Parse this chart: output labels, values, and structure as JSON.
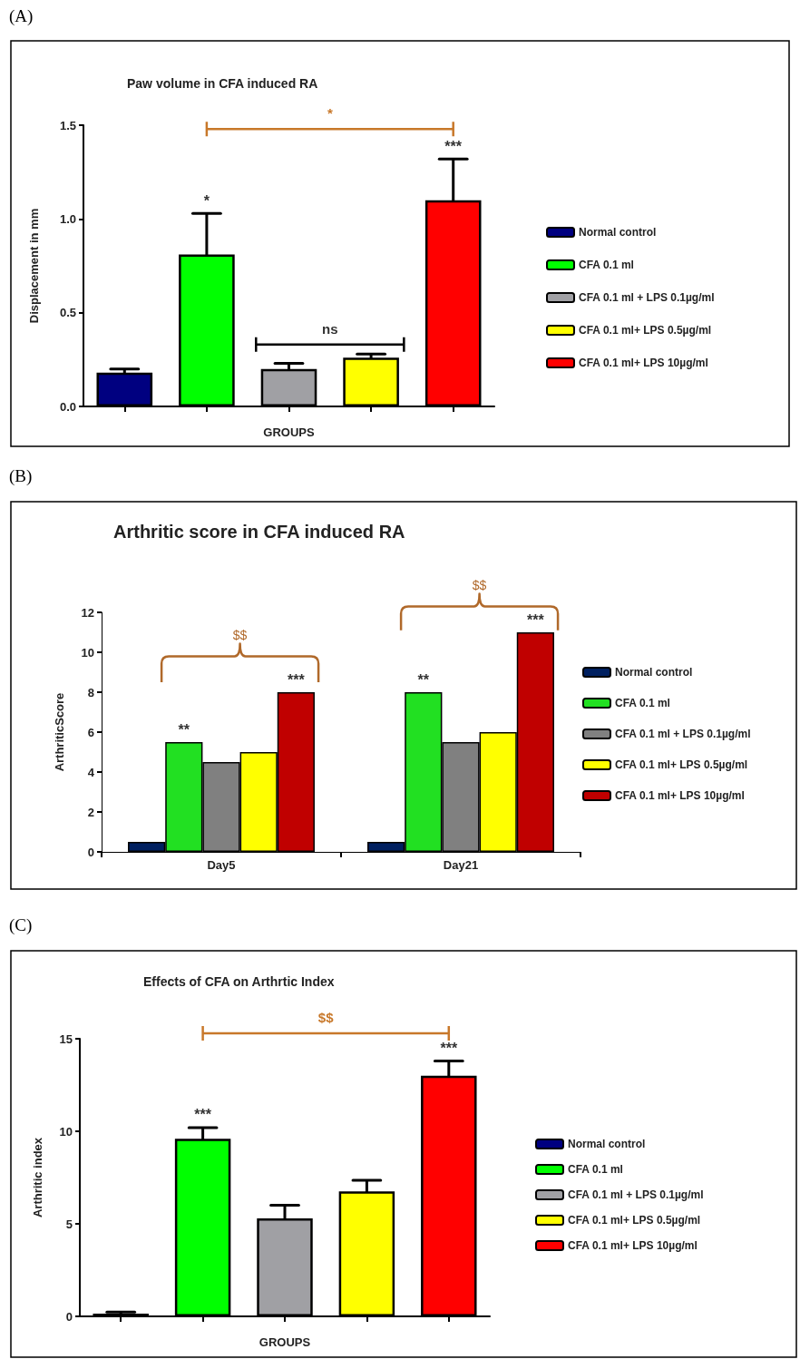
{
  "chart_data": [
    {
      "type": "bar",
      "title": "Paw volume in CFA induced RA",
      "xlabel": "GROUPS",
      "ylabel": "Displacement in mm",
      "categories": [
        null,
        null,
        null,
        null,
        null
      ],
      "ylim": [
        0,
        1.5
      ],
      "yticks": [
        {
          "value": 0,
          "label": "0.0"
        },
        {
          "value": 0.5,
          "label": "0.5"
        },
        {
          "value": 1,
          "label": "1.0"
        },
        {
          "value": 1.5,
          "label": "1.5"
        }
      ],
      "legend": "right",
      "annotations": [
        "(A)",
        "*",
        "*",
        "ns",
        "***"
      ],
      "series": [
        {
          "name": "Normal control",
          "color": "#000080",
          "values": [
            0.18,
            null,
            null,
            null,
            null
          ],
          "errors": [
            0.02,
            null,
            null,
            null,
            null
          ]
        },
        {
          "name": "CFA 0.1 ml",
          "color": "#00ff00",
          "values": [
            null,
            0.81,
            null,
            null,
            null
          ],
          "errors": [
            null,
            0.22,
            null,
            null,
            null
          ]
        },
        {
          "name": "CFA 0.1 ml + LPS 0.1µg/ml",
          "color": "#a0a0a4",
          "values": [
            null,
            null,
            0.2,
            null,
            null
          ],
          "errors": [
            null,
            null,
            0.03,
            null,
            null
          ]
        },
        {
          "name": "CFA 0.1 ml+ LPS 0.5µg/ml",
          "color": "#ffff00",
          "values": [
            null,
            null,
            null,
            0.26,
            null
          ],
          "errors": [
            null,
            null,
            null,
            0.02,
            null
          ]
        },
        {
          "name": "CFA 0.1 ml+ LPS 10µg/ml",
          "color": "#ff0000",
          "values": [
            null,
            null,
            null,
            null,
            1.1
          ],
          "errors": [
            null,
            null,
            null,
            null,
            0.22
          ]
        }
      ]
    },
    {
      "type": "bar",
      "title": "Arthritic score in CFA induced RA",
      "ylabel": "ArthriticScore",
      "categories": [
        "Day5",
        "Day21"
      ],
      "ylim": [
        0,
        12
      ],
      "yticks": [
        0,
        2,
        4,
        6,
        8,
        10,
        12
      ],
      "legend": "right",
      "annotations": [
        "(B)",
        "$$",
        "**",
        "***",
        "$$",
        "**",
        "***"
      ],
      "series": [
        {
          "name": "Normal control",
          "color": "#002060",
          "values": [
            0.5,
            0.5
          ]
        },
        {
          "name": "CFA 0.1 ml",
          "color": "#22e022",
          "values": [
            5.5,
            8
          ]
        },
        {
          "name": "CFA 0.1 ml + LPS 0.1µg/ml",
          "color": "#808080",
          "values": [
            4.5,
            5.5
          ]
        },
        {
          "name": "CFA 0.1 ml+ LPS 0.5µg/ml",
          "color": "#ffff00",
          "values": [
            5,
            6
          ]
        },
        {
          "name": "CFA 0.1 ml+ LPS 10µg/ml",
          "color": "#c00000",
          "values": [
            8,
            11
          ]
        }
      ]
    },
    {
      "type": "bar",
      "title": "Effects of CFA on Arthrtic Index",
      "xlabel": "GROUPS",
      "ylabel": "Arthritic index",
      "categories": [
        null,
        null,
        null,
        null,
        null
      ],
      "ylim": [
        0,
        15
      ],
      "yticks": [
        0,
        5,
        10,
        15
      ],
      "legend": "right",
      "annotations": [
        "(C)",
        "$$",
        "***",
        "***"
      ],
      "series": [
        {
          "name": "Normal control",
          "color": "#000080",
          "values": [
            0.15,
            null,
            null,
            null,
            null
          ],
          "errors": [
            0.08,
            null,
            null,
            null,
            null
          ]
        },
        {
          "name": "CFA 0.1 ml",
          "color": "#00ff00",
          "values": [
            null,
            9.6,
            null,
            null,
            null
          ],
          "errors": [
            null,
            0.6,
            null,
            null,
            null
          ]
        },
        {
          "name": "CFA 0.1 ml + LPS 0.1µg/ml",
          "color": "#a0a0a4",
          "values": [
            null,
            null,
            5.3,
            null,
            null
          ],
          "errors": [
            null,
            null,
            0.7,
            null,
            null
          ]
        },
        {
          "name": "CFA 0.1 ml+ LPS 0.5µg/ml",
          "color": "#ffff00",
          "values": [
            null,
            null,
            null,
            6.75,
            null
          ],
          "errors": [
            null,
            null,
            null,
            0.6,
            null
          ]
        },
        {
          "name": "CFA 0.1 ml+ LPS 10µg/ml",
          "color": "#ff0000",
          "values": [
            null,
            null,
            null,
            null,
            13
          ],
          "errors": [
            null,
            null,
            null,
            null,
            0.8
          ]
        }
      ]
    }
  ]
}
